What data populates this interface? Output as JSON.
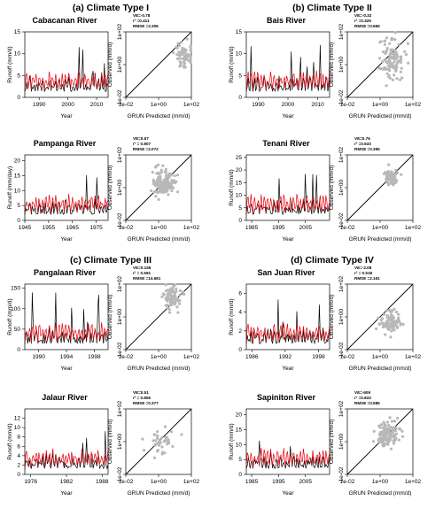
{
  "groups": [
    {
      "label": "(a) Climate Type I"
    },
    {
      "label": "(b) Climate Type II"
    },
    {
      "label": "(c) Climate Type III"
    },
    {
      "label": "(d) Climate Type IV"
    }
  ],
  "chart_data": [
    {
      "type": "line",
      "title": "Cabacanan River",
      "xlabel": "Year",
      "ylabel": "Runoff (mm/d)",
      "xlim": [
        1985,
        2014
      ],
      "ylim": [
        0,
        15
      ],
      "xticks": [
        1990,
        2000,
        2010
      ],
      "yticks": [
        0,
        5,
        10,
        15
      ],
      "series": [
        {
          "color": "#000000"
        },
        {
          "color": "#e8000b"
        }
      ]
    },
    {
      "type": "scatter",
      "stats": [
        "VE=-0.78",
        "r² =0.411",
        "RMSE =2.306"
      ],
      "xlabel": "GRUN Predicted (mm/d)",
      "ylabel": "Observed (mm/d)",
      "log_scale": true,
      "ticks": [
        "1e-02",
        "1e+00",
        "1e+02"
      ],
      "cloud": {
        "cx": 1.6,
        "cy": 0.6,
        "sx": 0.25,
        "sy": 0.35,
        "n": 70
      }
    },
    {
      "type": "line",
      "title": "Bais River",
      "xlabel": "Year",
      "ylabel": "Runoff (mm/d)",
      "xlim": [
        1986,
        2014
      ],
      "ylim": [
        0,
        15
      ],
      "xticks": [
        1990,
        2000,
        2010
      ],
      "yticks": [
        0,
        5,
        10,
        15
      ],
      "series": [
        {
          "color": "#000000"
        },
        {
          "color": "#e8000b"
        }
      ]
    },
    {
      "type": "scatter",
      "stats": [
        "VE=-0.32",
        "r² =0.329",
        "RMSE =0.965"
      ],
      "xlabel": "GRUN Predicted (mm/d)",
      "ylabel": "Observed (mm/d)",
      "log_scale": true,
      "ticks": [
        "1e-02",
        "1e+00",
        "1e+02"
      ],
      "cloud": {
        "cx": 0.8,
        "cy": 0.4,
        "sx": 0.35,
        "sy": 0.7,
        "n": 110
      }
    },
    {
      "type": "line",
      "title": "Pampanga River",
      "xlabel": "Year",
      "ylabel": "Runoff (mm/day)",
      "xlim": [
        1945,
        1980
      ],
      "ylim": [
        0,
        22
      ],
      "xticks": [
        1945,
        1955,
        1965,
        1975
      ],
      "yticks": [
        0,
        5,
        10,
        15,
        20
      ],
      "series": [
        {
          "color": "#000000"
        },
        {
          "color": "#e8000b"
        }
      ]
    },
    {
      "type": "scatter",
      "stats": [
        "VE=0.57",
        "r² = 0.807",
        "RMSE =2.072"
      ],
      "xlabel": "GRUN Predicted (mm/d)",
      "ylabel": "Observed (mm/d)",
      "log_scale": true,
      "ticks": [
        "1e-02",
        "1e+00",
        "1e+02"
      ],
      "cloud": {
        "cx": 0.3,
        "cy": 0.3,
        "sx": 0.4,
        "sy": 0.4,
        "n": 140
      }
    },
    {
      "type": "line",
      "title": "Tenani River",
      "xlabel": "Year",
      "ylabel": "Runoff (mm/d)",
      "xlim": [
        1983,
        2014
      ],
      "ylim": [
        0,
        26
      ],
      "xticks": [
        1985,
        1995,
        2005
      ],
      "yticks": [
        0,
        5,
        10,
        15,
        20,
        25
      ],
      "series": [
        {
          "color": "#000000"
        },
        {
          "color": "#e8000b"
        }
      ]
    },
    {
      "type": "scatter",
      "stats": [
        "VE=0.76",
        "r² =0.633",
        "RMSE =0.395"
      ],
      "xlabel": "GRUN Predicted (mm/d)",
      "ylabel": "Observed (mm/d)",
      "log_scale": true,
      "ticks": [
        "1e-02",
        "1e+00",
        "1e+02"
      ],
      "cloud": {
        "cx": 0.7,
        "cy": 0.6,
        "sx": 0.2,
        "sy": 0.25,
        "n": 80
      }
    },
    {
      "type": "line",
      "title": "Pangalaan River",
      "xlabel": "Year",
      "ylabel": "Runoff (mm/d)",
      "xlim": [
        1988,
        2000
      ],
      "ylim": [
        0,
        160
      ],
      "xticks": [
        1990,
        1994,
        1998
      ],
      "yticks": [
        0,
        50,
        100,
        150
      ],
      "series": [
        {
          "color": "#000000"
        },
        {
          "color": "#e8000b"
        }
      ]
    },
    {
      "type": "scatter",
      "stats": [
        "VE=0.155",
        "r² = 0.591",
        "RMSE =14.681"
      ],
      "xlabel": "GRUN Predicted (mm/d)",
      "ylabel": "Observed (mm/d)",
      "log_scale": true,
      "ticks": [
        "1e-02",
        "1e+00",
        "1e+02"
      ],
      "cloud": {
        "cx": 0.8,
        "cy": 1.2,
        "sx": 0.3,
        "sy": 0.35,
        "n": 80
      }
    },
    {
      "type": "line",
      "title": "San Juan River",
      "xlabel": "Year",
      "ylabel": "Runoff (mm/d)",
      "xlim": [
        1985,
        2000
      ],
      "ylim": [
        0,
        7
      ],
      "xticks": [
        1986,
        1992,
        1998
      ],
      "yticks": [
        0,
        2,
        4,
        6
      ],
      "series": [
        {
          "color": "#000000"
        },
        {
          "color": "#e8000b"
        }
      ]
    },
    {
      "type": "scatter",
      "stats": [
        "VE=-2.08",
        "r² = 0.518",
        "RMSE =2.161"
      ],
      "xlabel": "GRUN Predicted (mm/d)",
      "ylabel": "Observed (mm/d)",
      "log_scale": true,
      "ticks": [
        "1e-02",
        "1e+00",
        "1e+02"
      ],
      "cloud": {
        "cx": 0.7,
        "cy": -0.3,
        "sx": 0.35,
        "sy": 0.3,
        "n": 90
      }
    },
    {
      "type": "line",
      "title": "Jalaur River",
      "xlabel": "Year",
      "ylabel": "Runoff (mm/d)",
      "xlim": [
        1975,
        1989
      ],
      "ylim": [
        0,
        14
      ],
      "xticks": [
        1976,
        1982,
        1988
      ],
      "yticks": [
        0,
        2,
        4,
        6,
        8,
        10,
        12
      ],
      "series": [
        {
          "color": "#000000"
        },
        {
          "color": "#e8000b"
        }
      ]
    },
    {
      "type": "scatter",
      "stats": [
        "VE=0.51",
        "r² = 0.855",
        "RMSE =0.377"
      ],
      "xlabel": "GRUN Predicted (mm/d)",
      "ylabel": "Observed (mm/d)",
      "log_scale": true,
      "ticks": [
        "1e-02",
        "1e+00",
        "1e+02"
      ],
      "cloud": {
        "cx": 0.0,
        "cy": 0.0,
        "sx": 0.45,
        "sy": 0.45,
        "n": 40
      }
    },
    {
      "type": "line",
      "title": "Sapiniton River",
      "xlabel": "Year",
      "ylabel": "Runoff (mm/d)",
      "xlim": [
        1983,
        2014
      ],
      "ylim": [
        0,
        22
      ],
      "xticks": [
        1985,
        1995,
        2005
      ],
      "yticks": [
        0,
        5,
        10,
        15,
        20
      ],
      "series": [
        {
          "color": "#000000"
        },
        {
          "color": "#e8000b"
        }
      ]
    },
    {
      "type": "scatter",
      "stats": [
        "VE=-609",
        "r² =0.833",
        "RMSE =0.585"
      ],
      "xlabel": "GRUN Predicted (mm/d)",
      "ylabel": "Observed (mm/d)",
      "log_scale": true,
      "ticks": [
        "1e-02",
        "1e+00",
        "1e+02"
      ],
      "cloud": {
        "cx": 0.5,
        "cy": 0.5,
        "sx": 0.35,
        "sy": 0.35,
        "n": 130
      }
    }
  ]
}
